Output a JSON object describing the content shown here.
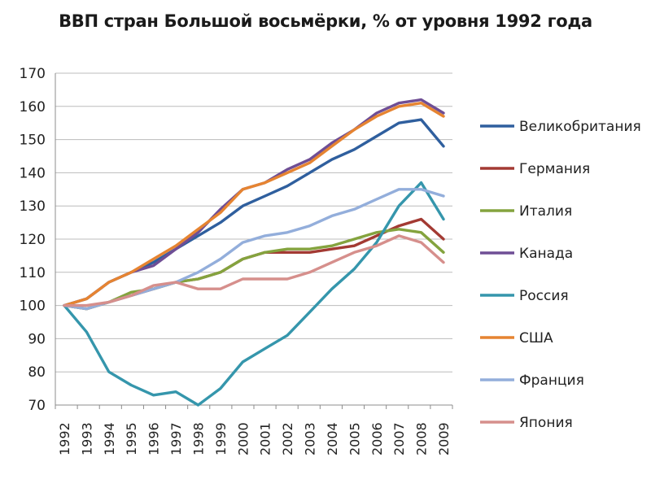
{
  "chart_data": {
    "type": "line",
    "title": "ВВП стран Большой восьмёрки, % от уровня 1992 года",
    "xlabel": "",
    "ylabel": "",
    "x": [
      "1992",
      "1993",
      "1994",
      "1995",
      "1996",
      "1997",
      "1998",
      "1999",
      "2000",
      "2001",
      "2002",
      "2003",
      "2004",
      "2005",
      "2006",
      "2007",
      "2008",
      "2009"
    ],
    "yticks": [
      "70",
      "80",
      "90",
      "100",
      "110",
      "120",
      "130",
      "140",
      "150",
      "160",
      "170"
    ],
    "ylim": [
      70,
      170
    ],
    "grid": true,
    "legend_position": "right",
    "series": [
      {
        "name": "Великобритания",
        "color": "#2f5f9e",
        "values": [
          100,
          102,
          107,
          110,
          113,
          117,
          121,
          125,
          130,
          133,
          136,
          140,
          144,
          147,
          151,
          155,
          156,
          148
        ]
      },
      {
        "name": "Германия",
        "color": "#a33a33",
        "values": [
          100,
          99,
          101,
          103,
          105,
          107,
          108,
          110,
          114,
          116,
          116,
          116,
          117,
          118,
          121,
          124,
          126,
          120
        ]
      },
      {
        "name": "Италия",
        "color": "#84a33e",
        "values": [
          100,
          99,
          101,
          104,
          105,
          107,
          108,
          110,
          114,
          116,
          117,
          117,
          118,
          120,
          122,
          123,
          122,
          116
        ]
      },
      {
        "name": "Канада",
        "color": "#6f4e95",
        "values": [
          100,
          102,
          107,
          110,
          112,
          117,
          122,
          129,
          135,
          137,
          141,
          144,
          149,
          153,
          158,
          161,
          162,
          158
        ]
      },
      {
        "name": "Россия",
        "color": "#3596ac",
        "values": [
          100,
          92,
          80,
          76,
          73,
          74,
          70,
          75,
          83,
          87,
          91,
          98,
          105,
          111,
          119,
          130,
          137,
          126
        ]
      },
      {
        "name": "США",
        "color": "#e68431",
        "values": [
          100,
          102,
          107,
          110,
          114,
          118,
          123,
          128,
          135,
          137,
          140,
          143,
          148,
          153,
          157,
          160,
          161,
          157
        ]
      },
      {
        "name": "Франция",
        "color": "#93aedb",
        "values": [
          100,
          99,
          101,
          103,
          105,
          107,
          110,
          114,
          119,
          121,
          122,
          124,
          127,
          129,
          132,
          135,
          135,
          133
        ]
      },
      {
        "name": "Япония",
        "color": "#d68f8c",
        "values": [
          100,
          100,
          101,
          103,
          106,
          107,
          105,
          105,
          108,
          108,
          108,
          110,
          113,
          116,
          118,
          121,
          119,
          113
        ]
      }
    ]
  }
}
